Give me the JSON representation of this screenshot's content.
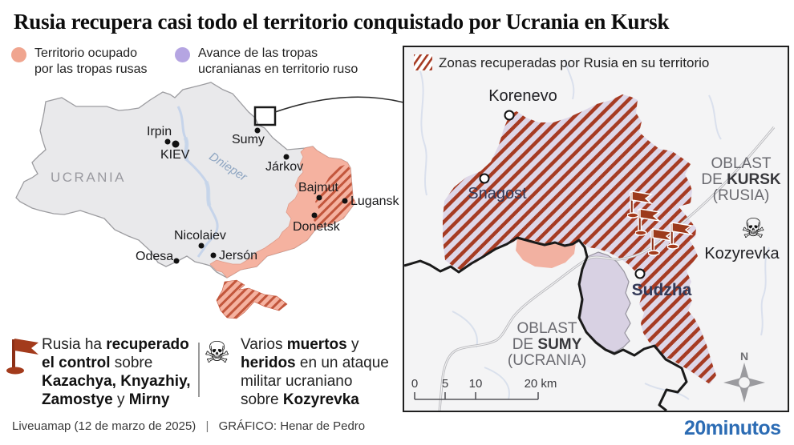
{
  "title": "Rusia recupera casi todo el territorio conquistado por Ucrania en Kursk",
  "legend": {
    "occupied": {
      "line1": "Territorio ocupado",
      "line2": "por las tropas rusas",
      "color": "#f0a58f"
    },
    "advance": {
      "line1": "Avance de las tropas",
      "line2": "ucranianas en territorio ruso",
      "color": "#b5a5e2"
    }
  },
  "main_map": {
    "country_label": "UCRANIA",
    "river_label": "Dnieper",
    "cities": [
      {
        "name": "Irpin"
      },
      {
        "name": "KIEV"
      },
      {
        "name": "Sumy"
      },
      {
        "name": "Járkov"
      },
      {
        "name": "Bajmut"
      },
      {
        "name": "Lugansk"
      },
      {
        "name": "Donetsk"
      },
      {
        "name": "Nicolaiev"
      },
      {
        "name": "Odesa"
      },
      {
        "name": "Jersón"
      }
    ]
  },
  "inset_map": {
    "legend_label": "Zonas recuperadas por Rusia en su territorio",
    "cities": [
      {
        "name": "Korenevo"
      },
      {
        "name": "Snagost"
      },
      {
        "name": "Sudzha"
      },
      {
        "name": "Kozyrevka"
      }
    ],
    "region_labels": {
      "kursk": {
        "line1": "OBLAST",
        "line2": [
          {
            "t": "DE ",
            "b": false
          },
          {
            "t": "KURSK",
            "b": true
          }
        ],
        "line3": "(RUSIA)"
      },
      "sumy": {
        "line1": "OBLAST",
        "line2": [
          {
            "t": "DE ",
            "b": false
          },
          {
            "t": "SUMY",
            "b": true
          }
        ],
        "line3": "(UCRANIA)"
      }
    },
    "scale_ticks": [
      "0",
      "5",
      "10",
      "20 km"
    ],
    "compass_label": "N"
  },
  "annotations": {
    "flag_note_lines": [
      [
        {
          "t": "Rusia ha ",
          "b": false
        },
        {
          "t": "recuperado",
          "b": true
        }
      ],
      [
        {
          "t": "el control",
          "b": true
        },
        {
          "t": " sobre",
          "b": false
        }
      ],
      [
        {
          "t": "Kazachya, Knyazhiy,",
          "b": true
        }
      ],
      [
        {
          "t": "Zamostye",
          "b": true
        },
        {
          "t": " y ",
          "b": false
        },
        {
          "t": "Mirny",
          "b": true
        }
      ]
    ],
    "skull_note_lines": [
      [
        {
          "t": "Varios ",
          "b": false
        },
        {
          "t": "muertos",
          "b": true
        },
        {
          "t": " y",
          "b": false
        }
      ],
      [
        {
          "t": "heridos",
          "b": true
        },
        {
          "t": " en un ataque",
          "b": false
        }
      ],
      [
        {
          "t": "militar ucraniano",
          "b": false
        }
      ],
      [
        {
          "t": "sobre ",
          "b": false
        },
        {
          "t": "Kozyrevka",
          "b": true
        }
      ]
    ]
  },
  "footer": {
    "source": "Liveuamap (12 de marzo de 2025)",
    "separator": "|",
    "credit": "GRÁFICO: Henar de Pedro",
    "brand": "20minutos"
  },
  "colors": {
    "occupied_pink": "#f5b2a0",
    "advance_purple": "#d8d1e3",
    "hatch_stripe_main": "#c2563c",
    "hatch_stripe_inset": "#a63b23",
    "hatch_bg_inset": "#ded7e8",
    "flag_red": "#a33b1c",
    "brand_blue": "#2c6cb4"
  }
}
